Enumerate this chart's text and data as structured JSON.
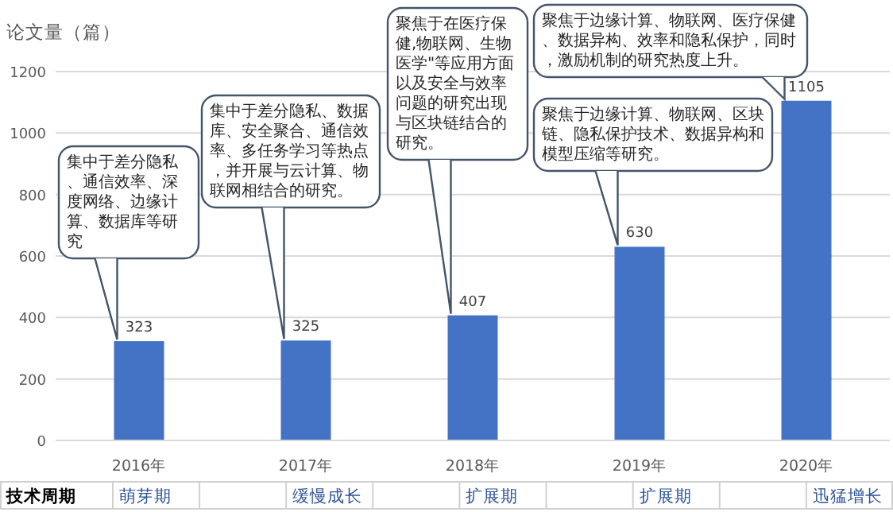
{
  "chart_data": {
    "type": "bar",
    "ylabel": "论文量（篇）",
    "categories": [
      "2016年",
      "2017年",
      "2018年",
      "2019年",
      "2020年"
    ],
    "values": [
      323,
      325,
      407,
      630,
      1105
    ],
    "color": "#4472c4",
    "ylim": [
      0,
      1200
    ],
    "yticks": [
      0,
      200,
      400,
      600,
      800,
      1000,
      1200
    ],
    "grid": "y",
    "data_labels": true,
    "annotations": [
      "集中于差分隐私、通信效率、深度网络、边缘计算、数据库等研究",
      "集中于差分隐私、数据库、安全聚合、通信效率、多任务学习等热点，并开展与云计算、物联网相结合的研究。",
      "聚焦于在医疗保健,物联网、生物医学\"等应用方面以及安全与效率问题的研究出现与区块链结合的研究。",
      {
        "text": "聚焦于边缘计算、物联网、医疗保健、数据异构、效率和隐私保护，同时，激励机制的研究热度上升。",
        "x": "2020年",
        "y": 1105
      },
      "聚焦于边缘计算、物联网、区块链、隐私保护技术、数据异构和模型压缩等研究。",
      "技术周期",
      "萌芽期",
      "缓慢成长",
      "扩展期",
      "扩展期",
      "迅猛增长"
    ]
  }
}
